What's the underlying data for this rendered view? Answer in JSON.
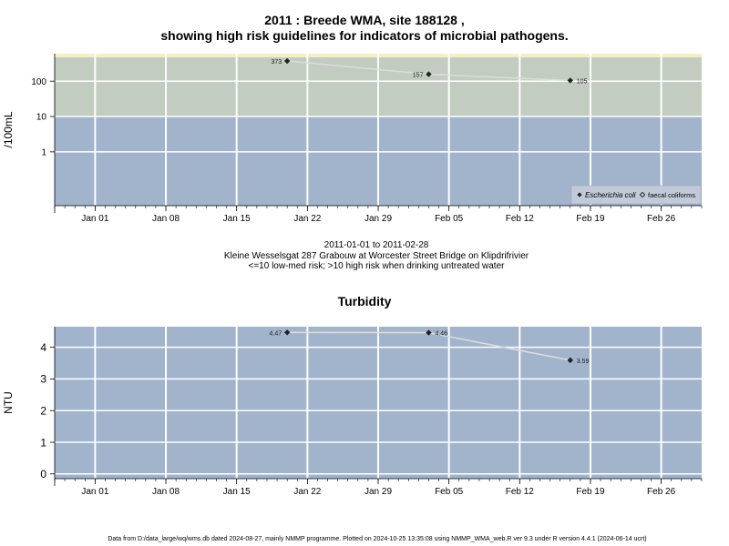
{
  "titles": {
    "main_line1": "2011 : Breede WMA, site 188128 ,",
    "main_line2": "showing high risk guidelines for indicators of microbial pathogens.",
    "turbidity": "Turbidity"
  },
  "caption": {
    "date_range": "2011-01-01 to 2011-02-28",
    "site": "Kleine Wesselsgat 287 Grabouw at Worcester Street Bridge on Klipdrifrivier",
    "guideline": "<=10 low-med risk; >10 high risk when drinking untreated water"
  },
  "footer": "Data from D:/data_large/wq/wms.db dated 2024-08-27, mainly NMMP programme. Plotted on 2024-10-25 13:35:08 using NMMP_WMA_web.R ver 9.3 under R version 4.4.1 (2024-06-14 ucrt)",
  "colors": {
    "high_risk_band": "#c2ccc0",
    "low_risk_band": "#a2b3cc",
    "top_band": "#f5efc4",
    "turbidity_bg": "#a2b3cc",
    "grid": "#ffffff",
    "line": "#dcdcdc",
    "point": "#222222"
  },
  "chart_data": [
    {
      "type": "line",
      "ylabel": "/100mL",
      "y_scale": "log",
      "ylim": [
        0.03,
        600
      ],
      "yticks": [
        1,
        10,
        100
      ],
      "ytick_labels": [
        "1",
        "10",
        "100"
      ],
      "risk_threshold": 10,
      "x_axis": "date",
      "xlim": [
        "2010-12-28",
        "2011-03-02"
      ],
      "xticks": [
        "2011-01-01",
        "2011-01-08",
        "2011-01-15",
        "2011-01-22",
        "2011-01-29",
        "2011-02-05",
        "2011-02-12",
        "2011-02-19",
        "2011-02-26"
      ],
      "xtick_labels": [
        "Jan 01",
        "Jan 08",
        "Jan 15",
        "Jan 22",
        "Jan 29",
        "Feb 05",
        "Feb 12",
        "Feb 19",
        "Feb 26"
      ],
      "grid": true,
      "legend_position": "bottom-right",
      "legend": [
        {
          "label": "Escherichia coli",
          "marker": "diamond-filled",
          "italic": true
        },
        {
          "label": "faecal coliforms",
          "marker": "diamond-open",
          "italic": false
        }
      ],
      "series": [
        {
          "name": "Escherichia coli",
          "points": [
            {
              "x": "2011-01-20",
              "y": 373,
              "label": "373",
              "label_side": "left"
            },
            {
              "x": "2011-02-03",
              "y": 157,
              "label": "157",
              "label_side": "left"
            },
            {
              "x": "2011-02-17",
              "y": 105,
              "label": "105",
              "label_side": "right"
            }
          ]
        }
      ]
    },
    {
      "type": "line",
      "ylabel": "NTU",
      "ylim": [
        -0.15,
        4.65
      ],
      "yticks": [
        0,
        1,
        2,
        3,
        4
      ],
      "ytick_labels": [
        "0",
        "1",
        "2",
        "3",
        "4"
      ],
      "x_axis": "date",
      "xlim": [
        "2010-12-28",
        "2011-03-02"
      ],
      "xticks": [
        "2011-01-01",
        "2011-01-08",
        "2011-01-15",
        "2011-01-22",
        "2011-01-29",
        "2011-02-05",
        "2011-02-12",
        "2011-02-19",
        "2011-02-26"
      ],
      "xtick_labels": [
        "Jan 01",
        "Jan 08",
        "Jan 15",
        "Jan 22",
        "Jan 29",
        "Feb 05",
        "Feb 12",
        "Feb 19",
        "Feb 26"
      ],
      "grid": true,
      "series": [
        {
          "points": [
            {
              "x": "2011-01-20",
              "y": 4.47,
              "label": "4.47",
              "label_side": "left"
            },
            {
              "x": "2011-02-03",
              "y": 4.46,
              "label": "4.46",
              "label_side": "right"
            },
            {
              "x": "2011-02-17",
              "y": 3.59,
              "label": "3.59",
              "label_side": "right"
            }
          ]
        }
      ]
    }
  ]
}
